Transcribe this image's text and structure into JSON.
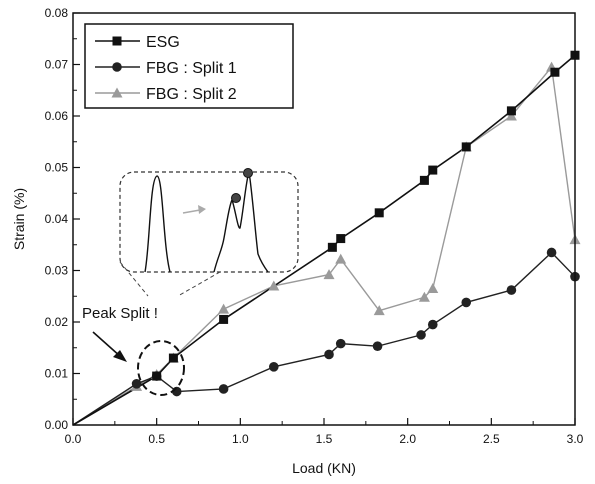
{
  "chart_data": {
    "type": "line",
    "xlabel": "Load (KN)",
    "ylabel": "Strain (%)",
    "xlim": [
      0.0,
      3.0
    ],
    "ylim": [
      0.0,
      0.08
    ],
    "x_ticks": [
      "0.0",
      "0.5",
      "1.0",
      "1.5",
      "2.0",
      "2.5",
      "3.0"
    ],
    "y_ticks": [
      "0.00",
      "0.01",
      "0.02",
      "0.03",
      "0.04",
      "0.05",
      "0.06",
      "0.07",
      "0.08"
    ],
    "grid": false,
    "legend_position": "top-left",
    "series": [
      {
        "name": "ESG",
        "marker": "square",
        "color": "#111111",
        "x": [
          0,
          0.5,
          0.6,
          0.9,
          1.55,
          1.6,
          1.83,
          2.1,
          2.15,
          2.35,
          2.62,
          2.88,
          3.0
        ],
        "y": [
          0,
          0.0095,
          0.013,
          0.0205,
          0.0345,
          0.0362,
          0.0412,
          0.0475,
          0.0495,
          0.054,
          0.061,
          0.0685,
          0.0718
        ]
      },
      {
        "name": "FBG : Split 1",
        "marker": "circle",
        "color": "#222222",
        "x": [
          0,
          0.38,
          0.5,
          0.62,
          0.9,
          1.2,
          1.53,
          1.6,
          1.82,
          2.08,
          2.15,
          2.35,
          2.62,
          2.86,
          3.0
        ],
        "y": [
          0,
          0.008,
          0.0095,
          0.0065,
          0.007,
          0.0113,
          0.0137,
          0.0158,
          0.0153,
          0.0175,
          0.0195,
          0.0238,
          0.0262,
          0.0335,
          0.0288
        ]
      },
      {
        "name": "FBG : Split 2",
        "marker": "triangle",
        "color": "#9a9a9a",
        "x": [
          0,
          0.38,
          0.5,
          0.6,
          0.9,
          1.2,
          1.53,
          1.6,
          1.83,
          2.1,
          2.15,
          2.35,
          2.62,
          2.86,
          3.0
        ],
        "y": [
          0,
          0.0075,
          0.0098,
          0.013,
          0.0225,
          0.027,
          0.0292,
          0.0322,
          0.0222,
          0.0248,
          0.0265,
          0.054,
          0.06,
          0.0695,
          0.036
        ]
      }
    ],
    "annotation": "Peak Split !"
  }
}
